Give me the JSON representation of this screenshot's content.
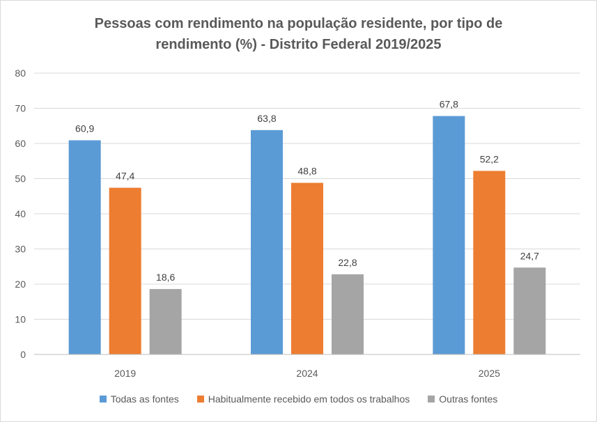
{
  "chart_data": {
    "type": "bar",
    "title": "Pessoas com rendimento na população  residente, por tipo de\nrendimento (%) - Distrito Federal 2019/2025",
    "categories": [
      "2019",
      "2024",
      "2025"
    ],
    "series": [
      {
        "name": "Todas as fontes",
        "values": [
          60.9,
          63.8,
          67.8
        ],
        "labels": [
          "60,9",
          "63,8",
          "67,8"
        ],
        "color": "#5b9bd5"
      },
      {
        "name": "Habitualmente recebido em todos os trabalhos",
        "values": [
          47.4,
          48.8,
          52.2
        ],
        "labels": [
          "47,4",
          "48,8",
          "52,2"
        ],
        "color": "#ed7d31"
      },
      {
        "name": "Outras fontes",
        "values": [
          18.6,
          22.8,
          24.7
        ],
        "labels": [
          "18,6",
          "22,8",
          "24,7"
        ],
        "color": "#a5a5a5"
      }
    ],
    "ylim": [
      0,
      80
    ],
    "yticks": [
      0,
      10,
      20,
      30,
      40,
      50,
      60,
      70,
      80
    ],
    "grid": true,
    "legend": "bottom"
  }
}
